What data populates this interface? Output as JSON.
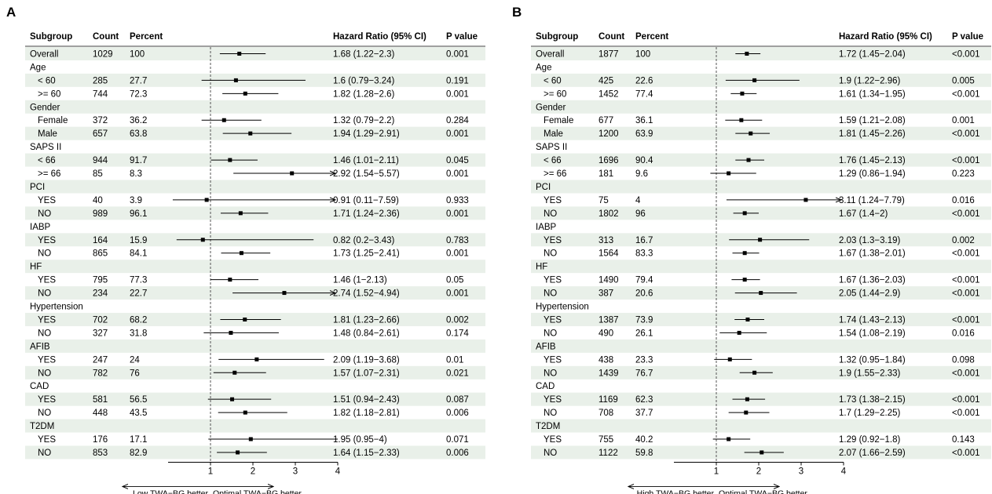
{
  "panels": [
    {
      "label": "A",
      "headers": {
        "subgroup": "Subgroup",
        "count": "Count",
        "percent": "Percent",
        "hr": "Hazard Ratio (95% CI)",
        "p": "P value"
      },
      "footer_left": "Low TWA−BG better",
      "footer_right": "Optimal TWA−BG better"
    },
    {
      "label": "B",
      "headers": {
        "subgroup": "Subgroup",
        "count": "Count",
        "percent": "Percent",
        "hr": "Hazard Ratio (95% CI)",
        "p": "P value"
      },
      "footer_left": "High TWA−BG better",
      "footer_right": "Optimal TWA−BG better"
    }
  ],
  "chart_data": [
    {
      "type": "forest",
      "xlim": [
        0,
        4
      ],
      "xticks": [
        "1",
        "2",
        "3",
        "4"
      ],
      "reference_line": 1,
      "rows": [
        {
          "label": "Overall",
          "count": "1029",
          "percent": "100",
          "hr": 1.68,
          "lo": 1.22,
          "hi": 2.3,
          "hr_text": "1.68 (1.22−2.3)",
          "p": "0.001"
        },
        {
          "label": "Age",
          "group": true
        },
        {
          "label": "< 60",
          "sub": true,
          "count": "285",
          "percent": "27.7",
          "hr": 1.6,
          "lo": 0.79,
          "hi": 3.24,
          "hr_text": "1.6 (0.79−3.24)",
          "p": "0.191"
        },
        {
          "label": ">= 60",
          "sub": true,
          "count": "744",
          "percent": "72.3",
          "hr": 1.82,
          "lo": 1.28,
          "hi": 2.6,
          "hr_text": "1.82 (1.28−2.6)",
          "p": "0.001"
        },
        {
          "label": "Gender",
          "group": true
        },
        {
          "label": "Female",
          "sub": true,
          "count": "372",
          "percent": "36.2",
          "hr": 1.32,
          "lo": 0.79,
          "hi": 2.2,
          "hr_text": "1.32 (0.79−2.2)",
          "p": "0.284"
        },
        {
          "label": "Male",
          "sub": true,
          "count": "657",
          "percent": "63.8",
          "hr": 1.94,
          "lo": 1.29,
          "hi": 2.91,
          "hr_text": "1.94 (1.29−2.91)",
          "p": "0.001"
        },
        {
          "label": "SAPS II",
          "group": true
        },
        {
          "label": "< 66",
          "sub": true,
          "count": "944",
          "percent": "91.7",
          "hr": 1.46,
          "lo": 1.01,
          "hi": 2.11,
          "hr_text": "1.46 (1.01−2.11)",
          "p": "0.045"
        },
        {
          "label": ">= 66",
          "sub": true,
          "count": "85",
          "percent": "8.3",
          "hr": 2.92,
          "lo": 1.54,
          "hi": 5.57,
          "hr_text": "2.92 (1.54−5.57)",
          "p": "0.001"
        },
        {
          "label": "PCI",
          "group": true
        },
        {
          "label": "YES",
          "sub": true,
          "count": "40",
          "percent": "3.9",
          "hr": 0.91,
          "lo": 0.11,
          "hi": 7.59,
          "hr_text": "0.91 (0.11−7.59)",
          "p": "0.933"
        },
        {
          "label": "NO",
          "sub": true,
          "count": "989",
          "percent": "96.1",
          "hr": 1.71,
          "lo": 1.24,
          "hi": 2.36,
          "hr_text": "1.71 (1.24−2.36)",
          "p": "0.001"
        },
        {
          "label": "IABP",
          "group": true
        },
        {
          "label": "YES",
          "sub": true,
          "count": "164",
          "percent": "15.9",
          "hr": 0.82,
          "lo": 0.2,
          "hi": 3.43,
          "hr_text": "0.82 (0.2−3.43)",
          "p": "0.783"
        },
        {
          "label": "NO",
          "sub": true,
          "count": "865",
          "percent": "84.1",
          "hr": 1.73,
          "lo": 1.25,
          "hi": 2.41,
          "hr_text": "1.73 (1.25−2.41)",
          "p": "0.001"
        },
        {
          "label": "HF",
          "group": true
        },
        {
          "label": "YES",
          "sub": true,
          "count": "795",
          "percent": "77.3",
          "hr": 1.46,
          "lo": 1,
          "hi": 2.13,
          "hr_text": "1.46 (1−2.13)",
          "p": "0.05"
        },
        {
          "label": "NO",
          "sub": true,
          "count": "234",
          "percent": "22.7",
          "hr": 2.74,
          "lo": 1.52,
          "hi": 4.94,
          "hr_text": "2.74 (1.52−4.94)",
          "p": "0.001"
        },
        {
          "label": "Hypertension",
          "group": true
        },
        {
          "label": "YES",
          "sub": true,
          "count": "702",
          "percent": "68.2",
          "hr": 1.81,
          "lo": 1.23,
          "hi": 2.66,
          "hr_text": "1.81 (1.23−2.66)",
          "p": "0.002"
        },
        {
          "label": "NO",
          "sub": true,
          "count": "327",
          "percent": "31.8",
          "hr": 1.48,
          "lo": 0.84,
          "hi": 2.61,
          "hr_text": "1.48 (0.84−2.61)",
          "p": "0.174"
        },
        {
          "label": "AFIB",
          "group": true
        },
        {
          "label": "YES",
          "sub": true,
          "count": "247",
          "percent": "24",
          "hr": 2.09,
          "lo": 1.19,
          "hi": 3.68,
          "hr_text": "2.09 (1.19−3.68)",
          "p": "0.01"
        },
        {
          "label": "NO",
          "sub": true,
          "count": "782",
          "percent": "76",
          "hr": 1.57,
          "lo": 1.07,
          "hi": 2.31,
          "hr_text": "1.57 (1.07−2.31)",
          "p": "0.021"
        },
        {
          "label": "CAD",
          "group": true
        },
        {
          "label": "YES",
          "sub": true,
          "count": "581",
          "percent": "56.5",
          "hr": 1.51,
          "lo": 0.94,
          "hi": 2.43,
          "hr_text": "1.51 (0.94−2.43)",
          "p": "0.087"
        },
        {
          "label": "NO",
          "sub": true,
          "count": "448",
          "percent": "43.5",
          "hr": 1.82,
          "lo": 1.18,
          "hi": 2.81,
          "hr_text": "1.82 (1.18−2.81)",
          "p": "0.006"
        },
        {
          "label": "T2DM",
          "group": true
        },
        {
          "label": "YES",
          "sub": true,
          "count": "176",
          "percent": "17.1",
          "hr": 1.95,
          "lo": 0.95,
          "hi": 4,
          "hr_text": "1.95 (0.95−4)",
          "p": "0.071"
        },
        {
          "label": "NO",
          "sub": true,
          "count": "853",
          "percent": "82.9",
          "hr": 1.64,
          "lo": 1.15,
          "hi": 2.33,
          "hr_text": "1.64 (1.15−2.33)",
          "p": "0.006"
        }
      ]
    },
    {
      "type": "forest",
      "xlim": [
        0,
        4
      ],
      "xticks": [
        "1",
        "2",
        "3",
        "4"
      ],
      "reference_line": 1,
      "rows": [
        {
          "label": "Overall",
          "count": "1877",
          "percent": "100",
          "hr": 1.72,
          "lo": 1.45,
          "hi": 2.04,
          "hr_text": "1.72 (1.45−2.04)",
          "p": "<0.001"
        },
        {
          "label": "Age",
          "group": true
        },
        {
          "label": "< 60",
          "sub": true,
          "count": "425",
          "percent": "22.6",
          "hr": 1.9,
          "lo": 1.22,
          "hi": 2.96,
          "hr_text": "1.9 (1.22−2.96)",
          "p": "0.005"
        },
        {
          "label": ">= 60",
          "sub": true,
          "count": "1452",
          "percent": "77.4",
          "hr": 1.61,
          "lo": 1.34,
          "hi": 1.95,
          "hr_text": "1.61 (1.34−1.95)",
          "p": "<0.001"
        },
        {
          "label": "Gender",
          "group": true
        },
        {
          "label": "Female",
          "sub": true,
          "count": "677",
          "percent": "36.1",
          "hr": 1.59,
          "lo": 1.21,
          "hi": 2.08,
          "hr_text": "1.59 (1.21−2.08)",
          "p": "0.001"
        },
        {
          "label": "Male",
          "sub": true,
          "count": "1200",
          "percent": "63.9",
          "hr": 1.81,
          "lo": 1.45,
          "hi": 2.26,
          "hr_text": "1.81 (1.45−2.26)",
          "p": "<0.001"
        },
        {
          "label": "SAPS II",
          "group": true
        },
        {
          "label": "< 66",
          "sub": true,
          "count": "1696",
          "percent": "90.4",
          "hr": 1.76,
          "lo": 1.45,
          "hi": 2.13,
          "hr_text": "1.76 (1.45−2.13)",
          "p": "<0.001"
        },
        {
          "label": ">= 66",
          "sub": true,
          "count": "181",
          "percent": "9.6",
          "hr": 1.29,
          "lo": 0.86,
          "hi": 1.94,
          "hr_text": "1.29 (0.86−1.94)",
          "p": "0.223"
        },
        {
          "label": "PCI",
          "group": true
        },
        {
          "label": "YES",
          "sub": true,
          "count": "75",
          "percent": "4",
          "hr": 3.11,
          "lo": 1.24,
          "hi": 7.79,
          "hr_text": "3.11 (1.24−7.79)",
          "p": "0.016"
        },
        {
          "label": "NO",
          "sub": true,
          "count": "1802",
          "percent": "96",
          "hr": 1.67,
          "lo": 1.4,
          "hi": 2,
          "hr_text": "1.67 (1.4−2)",
          "p": "<0.001"
        },
        {
          "label": "IABP",
          "group": true
        },
        {
          "label": "YES",
          "sub": true,
          "count": "313",
          "percent": "16.7",
          "hr": 2.03,
          "lo": 1.3,
          "hi": 3.19,
          "hr_text": "2.03 (1.3−3.19)",
          "p": "0.002"
        },
        {
          "label": "NO",
          "sub": true,
          "count": "1564",
          "percent": "83.3",
          "hr": 1.67,
          "lo": 1.38,
          "hi": 2.01,
          "hr_text": "1.67 (1.38−2.01)",
          "p": "<0.001"
        },
        {
          "label": "HF",
          "group": true
        },
        {
          "label": "YES",
          "sub": true,
          "count": "1490",
          "percent": "79.4",
          "hr": 1.67,
          "lo": 1.36,
          "hi": 2.03,
          "hr_text": "1.67 (1.36−2.03)",
          "p": "<0.001"
        },
        {
          "label": "NO",
          "sub": true,
          "count": "387",
          "percent": "20.6",
          "hr": 2.05,
          "lo": 1.44,
          "hi": 2.9,
          "hr_text": "2.05 (1.44−2.9)",
          "p": "<0.001"
        },
        {
          "label": "Hypertension",
          "group": true
        },
        {
          "label": "YES",
          "sub": true,
          "count": "1387",
          "percent": "73.9",
          "hr": 1.74,
          "lo": 1.43,
          "hi": 2.13,
          "hr_text": "1.74 (1.43−2.13)",
          "p": "<0.001"
        },
        {
          "label": "NO",
          "sub": true,
          "count": "490",
          "percent": "26.1",
          "hr": 1.54,
          "lo": 1.08,
          "hi": 2.19,
          "hr_text": "1.54 (1.08−2.19)",
          "p": "0.016"
        },
        {
          "label": "AFIB",
          "group": true
        },
        {
          "label": "YES",
          "sub": true,
          "count": "438",
          "percent": "23.3",
          "hr": 1.32,
          "lo": 0.95,
          "hi": 1.84,
          "hr_text": "1.32 (0.95−1.84)",
          "p": "0.098"
        },
        {
          "label": "NO",
          "sub": true,
          "count": "1439",
          "percent": "76.7",
          "hr": 1.9,
          "lo": 1.55,
          "hi": 2.33,
          "hr_text": "1.9 (1.55−2.33)",
          "p": "<0.001"
        },
        {
          "label": "CAD",
          "group": true
        },
        {
          "label": "YES",
          "sub": true,
          "count": "1169",
          "percent": "62.3",
          "hr": 1.73,
          "lo": 1.38,
          "hi": 2.15,
          "hr_text": "1.73 (1.38−2.15)",
          "p": "<0.001"
        },
        {
          "label": "NO",
          "sub": true,
          "count": "708",
          "percent": "37.7",
          "hr": 1.7,
          "lo": 1.29,
          "hi": 2.25,
          "hr_text": "1.7 (1.29−2.25)",
          "p": "<0.001"
        },
        {
          "label": "T2DM",
          "group": true
        },
        {
          "label": "YES",
          "sub": true,
          "count": "755",
          "percent": "40.2",
          "hr": 1.29,
          "lo": 0.92,
          "hi": 1.8,
          "hr_text": "1.29 (0.92−1.8)",
          "p": "0.143"
        },
        {
          "label": "NO",
          "sub": true,
          "count": "1122",
          "percent": "59.8",
          "hr": 2.07,
          "lo": 1.66,
          "hi": 2.59,
          "hr_text": "2.07 (1.66−2.59)",
          "p": "<0.001"
        }
      ]
    }
  ],
  "colors": {
    "stripe": "#e9f0e9",
    "line": "#000000",
    "refline": "#555555"
  }
}
